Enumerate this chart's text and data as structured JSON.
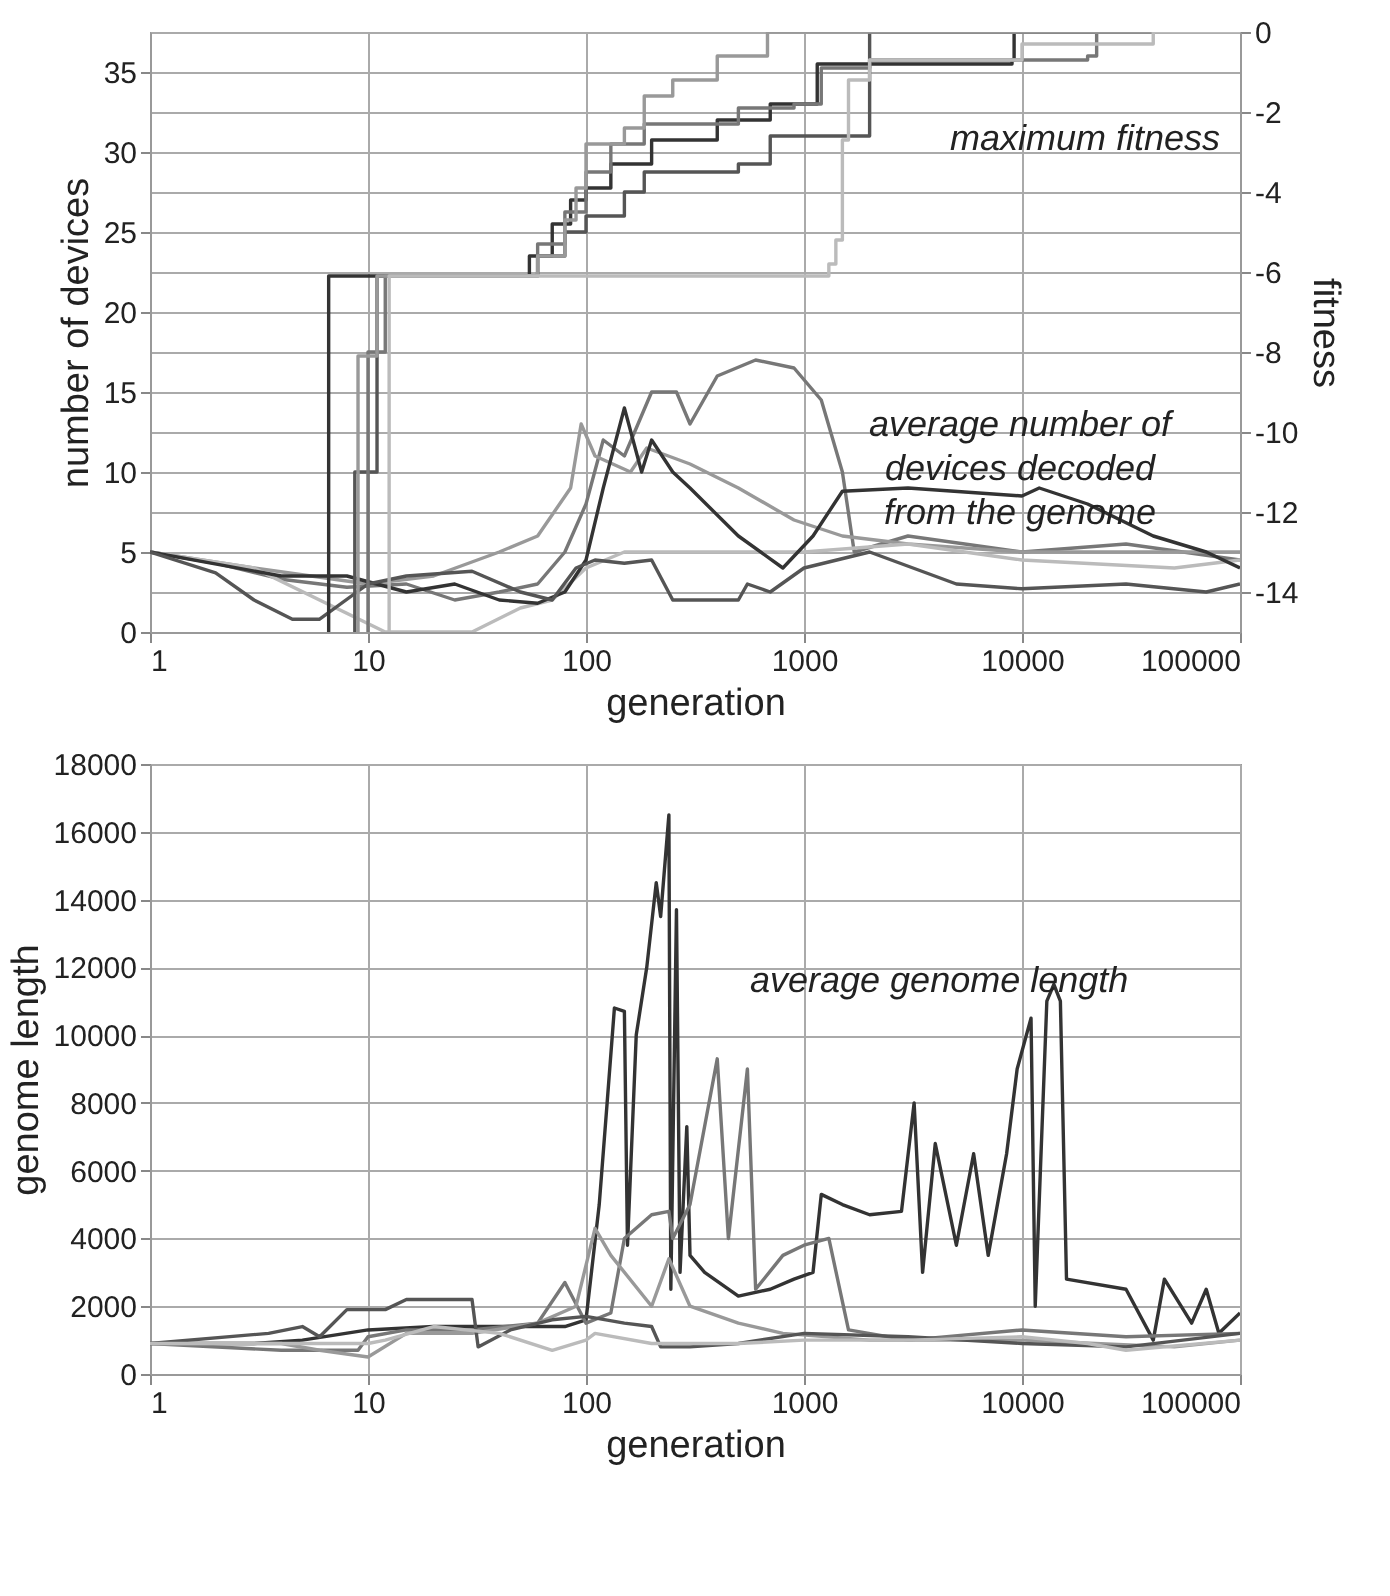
{
  "chart_data": [
    {
      "type": "line",
      "xlabel": "generation",
      "ylabel": "number of devices",
      "y2label": "fitness",
      "log": "x",
      "grid": true,
      "xlim": [
        1,
        100000
      ],
      "xticks": [
        1,
        10,
        100,
        1000,
        10000,
        100000
      ],
      "ylim": [
        0,
        37.5
      ],
      "yticks": [
        0,
        5,
        10,
        15,
        20,
        25,
        30,
        35
      ],
      "y2lim": [
        -15,
        0
      ],
      "y2ticks": [
        -14,
        -12,
        -10,
        -8,
        -6,
        -4,
        -2,
        0
      ],
      "annotations": [
        "maximum fitness",
        "average number of\ndevices decoded\nfrom the genome"
      ],
      "series": [
        {
          "type": "step",
          "axis": "y2",
          "color": "#333333",
          "x": [
            6.6,
            6.6,
            40,
            55,
            70,
            85,
            100,
            130,
            200,
            400,
            700,
            1000,
            1150,
            9000,
            9200,
            100000
          ],
          "values": [
            -15,
            -6.1,
            -6.1,
            -5.6,
            -4.8,
            -4.2,
            -3.9,
            -3.3,
            -2.7,
            -2.2,
            -1.8,
            -1.8,
            -0.8,
            -0.7,
            0,
            0
          ]
        },
        {
          "type": "step",
          "axis": "y2",
          "color": "#555555",
          "x": [
            8.7,
            8.7,
            9.5,
            11,
            11,
            40,
            60,
            80,
            100,
            150,
            185,
            500,
            700,
            1900,
            2000,
            100000
          ],
          "values": [
            -15,
            -11,
            -11,
            -6.6,
            -6.1,
            -6.1,
            -5.6,
            -5,
            -4.6,
            -4,
            -3.5,
            -3.3,
            -2.6,
            -2.6,
            0,
            0
          ]
        },
        {
          "type": "step",
          "axis": "y2",
          "color": "#777777",
          "x": [
            10,
            10,
            12,
            12,
            40,
            60,
            80,
            100,
            130,
            185,
            500,
            900,
            1200,
            2000,
            20000,
            22000,
            100000
          ],
          "values": [
            -15,
            -8,
            -8,
            -6.1,
            -6.1,
            -5.3,
            -4.5,
            -3.5,
            -2.8,
            -2.3,
            -1.9,
            -1.8,
            -0.9,
            -0.7,
            -0.6,
            0,
            0
          ]
        },
        {
          "type": "step",
          "axis": "y2",
          "color": "#999999",
          "x": [
            9,
            9,
            11,
            11,
            40,
            60,
            80,
            90,
            100,
            150,
            185,
            250,
            400,
            680,
            100000
          ],
          "values": [
            -15,
            -8.1,
            -8.1,
            -6.1,
            -6.1,
            -5.6,
            -4.7,
            -3.9,
            -2.8,
            -2.4,
            -1.6,
            -1.2,
            -0.6,
            0,
            0
          ]
        },
        {
          "type": "step",
          "axis": "y2",
          "color": "#bbbbbb",
          "x": [
            12.5,
            12.5,
            1100,
            1300,
            1400,
            1500,
            1600,
            2000,
            10000,
            40000,
            100000
          ],
          "values": [
            -15,
            -6.1,
            -6.1,
            -5.8,
            -5.2,
            -2.7,
            -1.2,
            -0.7,
            -0.3,
            0,
            0
          ]
        },
        {
          "color": "#777777",
          "x": [
            1,
            2,
            4,
            8,
            15,
            25,
            40,
            60,
            80,
            100,
            120,
            150,
            200,
            260,
            300,
            400,
            600,
            900,
            1200,
            1500,
            1700,
            3000,
            10000,
            30000,
            100000
          ],
          "values": [
            5,
            4.3,
            3.3,
            2.8,
            3,
            2,
            2.5,
            3,
            5,
            8,
            12,
            11,
            15,
            15,
            13,
            16,
            17,
            16.5,
            14.5,
            10,
            5,
            6,
            5,
            5.5,
            4.5
          ]
        },
        {
          "color": "#999999",
          "x": [
            1,
            3,
            10,
            20,
            40,
            60,
            85,
            95,
            110,
            160,
            190,
            300,
            500,
            900,
            1500,
            3000,
            10000,
            100000
          ],
          "values": [
            5,
            4,
            3,
            3.5,
            5,
            6,
            9,
            13,
            11,
            10,
            11.5,
            10.5,
            9,
            7,
            6,
            5.5,
            5,
            5
          ]
        },
        {
          "color": "#bbbbbb",
          "x": [
            1,
            3,
            12,
            30,
            50,
            70,
            100,
            150,
            250,
            400,
            1000,
            3000,
            10000,
            50000,
            100000
          ],
          "values": [
            5,
            4,
            0,
            0,
            1.5,
            2,
            4,
            5,
            5,
            5,
            5,
            5.5,
            4.5,
            4,
            4.5
          ]
        },
        {
          "color": "#333333",
          "x": [
            1,
            4,
            8,
            15,
            25,
            40,
            60,
            80,
            100,
            120,
            150,
            180,
            200,
            250,
            300,
            500,
            800,
            1100,
            1500,
            3000,
            10000,
            12000,
            20000,
            40000,
            70000,
            100000
          ],
          "values": [
            5,
            3.5,
            3.5,
            2.5,
            3,
            2,
            1.8,
            2.5,
            4.5,
            9,
            14,
            10,
            12,
            10,
            9,
            6,
            4,
            6,
            8.8,
            9,
            8.5,
            9,
            8,
            6,
            5,
            4
          ]
        },
        {
          "color": "#555555",
          "x": [
            1,
            2,
            3,
            4.5,
            6,
            10,
            15,
            30,
            50,
            70,
            90,
            110,
            150,
            200,
            250,
            500,
            550,
            700,
            1000,
            2000,
            5000,
            10000,
            30000,
            70000,
            100000
          ],
          "values": [
            5,
            3.7,
            2,
            0.8,
            0.8,
            3,
            3.5,
            3.8,
            2.5,
            2,
            4,
            4.5,
            4.3,
            4.5,
            2,
            2,
            3,
            2.5,
            4,
            5,
            3,
            2.7,
            3,
            2.5,
            3
          ]
        }
      ]
    },
    {
      "type": "line",
      "xlabel": "generation",
      "ylabel": "genome length",
      "log": "x",
      "grid": true,
      "xlim": [
        1,
        100000
      ],
      "xticks": [
        1,
        10,
        100,
        1000,
        10000,
        100000
      ],
      "ylim": [
        0,
        18000
      ],
      "yticks": [
        0,
        2000,
        4000,
        6000,
        8000,
        10000,
        12000,
        14000,
        16000,
        18000
      ],
      "annotations": [
        "average genome length"
      ],
      "series": [
        {
          "color": "#333333",
          "x": [
            1,
            3,
            5,
            10,
            20,
            50,
            80,
            100,
            115,
            125,
            135,
            150,
            155,
            170,
            190,
            210,
            220,
            240,
            245,
            260,
            270,
            290,
            300,
            350,
            500,
            700,
            900,
            1100,
            1200,
            1500,
            2000,
            2800,
            3200,
            3500,
            4000,
            5000,
            6000,
            7000,
            8500,
            9500,
            11000,
            11500,
            13000,
            14000,
            15000,
            16000,
            30000,
            40000,
            45000,
            60000,
            70000,
            80000,
            100000
          ],
          "values": [
            900,
            900,
            1000,
            1300,
            1400,
            1400,
            1400,
            1600,
            5000,
            8000,
            10800,
            10700,
            3800,
            10000,
            12000,
            14500,
            13500,
            16500,
            2500,
            13700,
            3000,
            7300,
            3500,
            3000,
            2300,
            2500,
            2800,
            3000,
            5300,
            5000,
            4700,
            4800,
            8000,
            3000,
            6800,
            3800,
            6500,
            3500,
            6500,
            9000,
            10500,
            2000,
            11000,
            11500,
            11000,
            2800,
            2500,
            1000,
            2800,
            1500,
            2500,
            1200,
            1800
          ]
        },
        {
          "color": "#777777",
          "x": [
            1,
            4,
            9,
            10,
            15,
            30,
            60,
            80,
            100,
            130,
            150,
            200,
            240,
            250,
            300,
            400,
            450,
            550,
            600,
            800,
            1000,
            1300,
            1600,
            3000,
            10000,
            30000,
            100000
          ],
          "values": [
            900,
            700,
            700,
            1100,
            1300,
            1300,
            1500,
            2700,
            1500,
            1800,
            4000,
            4700,
            4800,
            4000,
            5000,
            9300,
            4000,
            9000,
            2500,
            3500,
            3800,
            4000,
            1300,
            1000,
            1300,
            1100,
            1200
          ]
        },
        {
          "color": "#999999",
          "x": [
            1,
            4,
            6,
            10,
            15,
            30,
            60,
            90,
            110,
            130,
            200,
            240,
            300,
            500,
            800,
            2000,
            10000,
            50000,
            100000
          ],
          "values": [
            900,
            900,
            700,
            500,
            1200,
            1200,
            1500,
            2000,
            4300,
            3500,
            2000,
            3400,
            2000,
            1500,
            1200,
            1000,
            1000,
            800,
            1000
          ]
        },
        {
          "color": "#555555",
          "x": [
            1,
            3.5,
            5,
            6,
            8,
            12,
            15,
            30,
            32,
            45,
            70,
            100,
            150,
            200,
            220,
            300,
            500,
            1000,
            3000,
            10000,
            30000,
            100000
          ],
          "values": [
            900,
            1200,
            1400,
            1100,
            1900,
            1900,
            2200,
            2200,
            800,
            1300,
            1600,
            1700,
            1500,
            1400,
            800,
            800,
            900,
            1200,
            1100,
            900,
            800,
            1200
          ]
        },
        {
          "color": "#bbbbbb",
          "x": [
            1,
            10,
            12,
            20,
            40,
            70,
            100,
            110,
            200,
            500,
            1000,
            3000,
            10000,
            20000,
            30000,
            100000
          ],
          "values": [
            900,
            900,
            1000,
            1400,
            1200,
            700,
            1000,
            1200,
            900,
            900,
            1000,
            1000,
            1100,
            900,
            700,
            1000
          ]
        }
      ]
    }
  ]
}
